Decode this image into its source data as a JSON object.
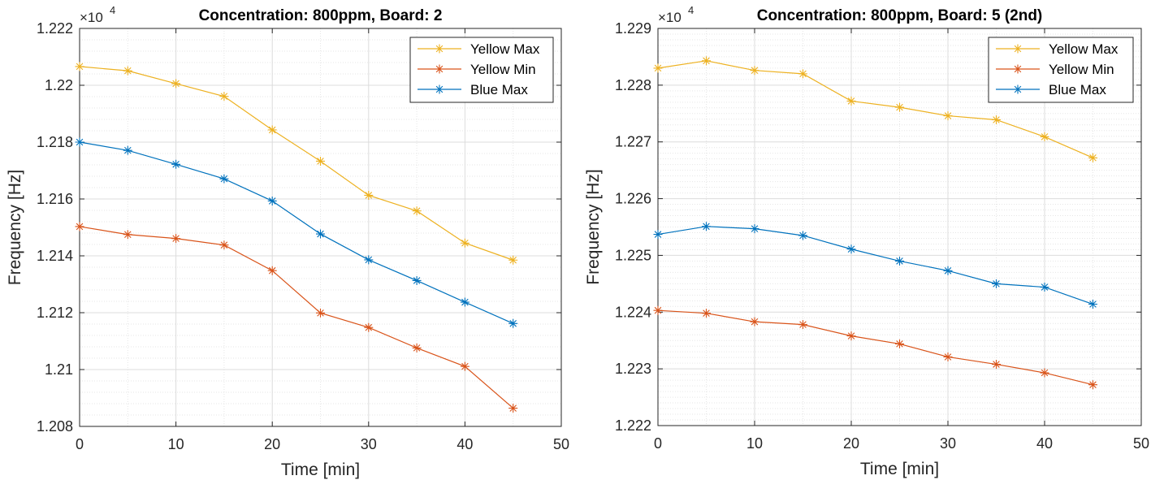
{
  "chart_data": [
    {
      "type": "line",
      "title": "Concentration: 800ppm, Board: 2",
      "xlabel": "Time [min]",
      "ylabel": "Frequency [Hz]",
      "y_exponent_label": "×10",
      "y_exponent_power": "4",
      "xlim": [
        0,
        50
      ],
      "ylim": [
        1.208,
        1.222
      ],
      "xticks": [
        "0",
        "10",
        "20",
        "30",
        "40",
        "50"
      ],
      "yticks": [
        "1.208",
        "1.21",
        "1.212",
        "1.214",
        "1.216",
        "1.218",
        "1.22",
        "1.222"
      ],
      "x": [
        0,
        5,
        10,
        15,
        20,
        25,
        30,
        35,
        40,
        45
      ],
      "grid": "major and minor, dotted",
      "legend_position": "top-right",
      "marker": "asterisk",
      "series": [
        {
          "name": "Yellow Max",
          "color": "#EDB120",
          "values": [
            1.22066,
            1.22051,
            1.22006,
            1.21961,
            1.21843,
            1.21733,
            1.21613,
            1.21558,
            1.21445,
            1.21385
          ]
        },
        {
          "name": "Yellow Min",
          "color": "#D95319",
          "values": [
            1.21503,
            1.21475,
            1.21461,
            1.21438,
            1.21348,
            1.21199,
            1.21148,
            1.21076,
            1.21011,
            1.20864
          ]
        },
        {
          "name": "Blue Max",
          "color": "#0072BD",
          "values": [
            1.218,
            1.21771,
            1.21722,
            1.21671,
            1.21593,
            1.21477,
            1.21386,
            1.21313,
            1.21237,
            1.21162
          ]
        }
      ]
    },
    {
      "type": "line",
      "title": "Concentration: 800ppm, Board: 5 (2nd)",
      "xlabel": "Time [min]",
      "ylabel": "Frequency [Hz]",
      "y_exponent_label": "×10",
      "y_exponent_power": "4",
      "xlim": [
        0,
        50
      ],
      "ylim": [
        1.222,
        1.229
      ],
      "xticks": [
        "0",
        "10",
        "20",
        "30",
        "40",
        "50"
      ],
      "yticks": [
        "1.222",
        "1.223",
        "1.224",
        "1.225",
        "1.226",
        "1.227",
        "1.228",
        "1.229"
      ],
      "x": [
        0,
        5,
        10,
        15,
        20,
        25,
        30,
        35,
        40,
        45
      ],
      "grid": "major and minor, dotted",
      "legend_position": "top-right",
      "marker": "asterisk",
      "series": [
        {
          "name": "Yellow Max",
          "color": "#EDB120",
          "values": [
            1.2283,
            1.22843,
            1.22826,
            1.2282,
            1.22772,
            1.22761,
            1.22746,
            1.22739,
            1.22709,
            1.22672
          ]
        },
        {
          "name": "Yellow Min",
          "color": "#D95319",
          "values": [
            1.22403,
            1.22398,
            1.22383,
            1.22378,
            1.22358,
            1.22344,
            1.22321,
            1.22308,
            1.22293,
            1.22272
          ]
        },
        {
          "name": "Blue Max",
          "color": "#0072BD",
          "values": [
            1.22537,
            1.22551,
            1.22547,
            1.22535,
            1.22511,
            1.2249,
            1.22473,
            1.2245,
            1.22444,
            1.22414
          ]
        }
      ]
    }
  ]
}
